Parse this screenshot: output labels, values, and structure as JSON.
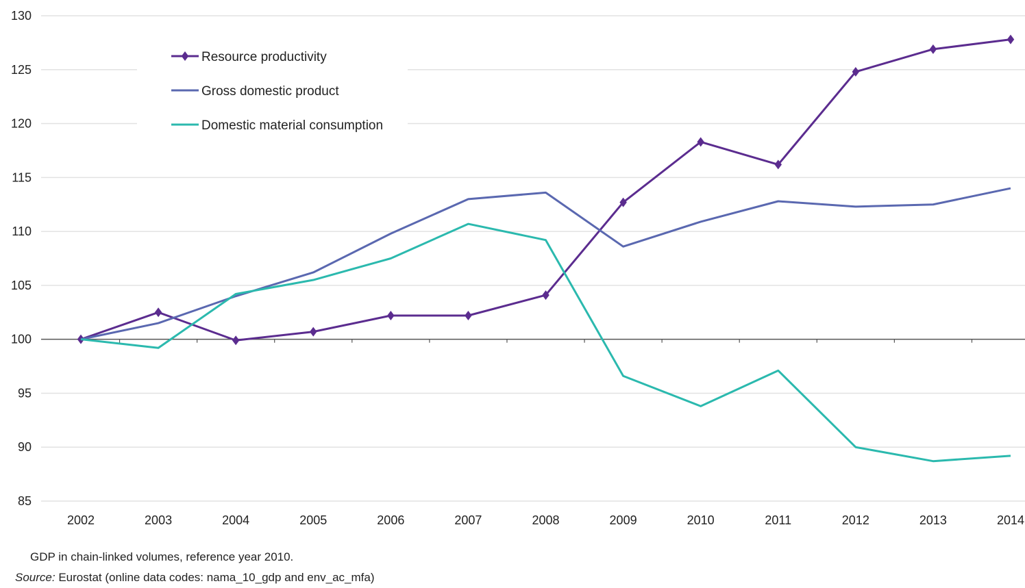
{
  "chart_data": {
    "type": "line",
    "title": "",
    "xlabel": "",
    "ylabel": "",
    "categories": [
      "2002",
      "2003",
      "2004",
      "2005",
      "2006",
      "2007",
      "2008",
      "2009",
      "2010",
      "2011",
      "2012",
      "2013",
      "2014"
    ],
    "ylim": [
      85,
      130
    ],
    "yticks": [
      85,
      90,
      95,
      100,
      105,
      110,
      115,
      120,
      125,
      130
    ],
    "grid": "horizontal",
    "reference_line": 100,
    "legend_position": "top-left",
    "series": [
      {
        "name": "Resource productivity",
        "color": "#5b2c8f",
        "marker": "diamond",
        "values": [
          100,
          102.5,
          99.9,
          100.7,
          102.2,
          102.2,
          104.1,
          112.7,
          118.3,
          116.2,
          124.8,
          126.9,
          127.8
        ]
      },
      {
        "name": "Gross domestic product",
        "color": "#5a68b0",
        "marker": "none",
        "values": [
          100,
          101.5,
          104.0,
          106.2,
          109.8,
          113.0,
          113.6,
          108.6,
          110.9,
          112.8,
          112.3,
          112.5,
          114.0
        ]
      },
      {
        "name": "Domestic material consumption",
        "color": "#2bb9ae",
        "marker": "none",
        "values": [
          100,
          99.2,
          104.2,
          105.5,
          107.5,
          110.7,
          109.2,
          96.6,
          93.8,
          97.1,
          90.0,
          88.7,
          89.2
        ]
      }
    ]
  },
  "footnote": "GDP in chain-linked volumes, reference year 2010.",
  "source": {
    "label": "Source:",
    "text": " Eurostat (online data codes: nama_10_gdp and env_ac_mfa)"
  }
}
